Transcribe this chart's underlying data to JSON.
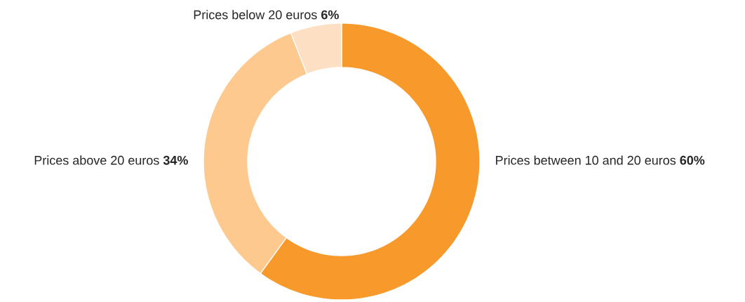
{
  "chart_data": {
    "type": "donut",
    "categories": [
      "Prices between 10 and 20 euros",
      "Prices above 20 euros",
      "Prices below 20 euros"
    ],
    "values": [
      60,
      34,
      6
    ],
    "colors": [
      "#f7992b",
      "#fdc98f",
      "#fde0c3"
    ],
    "value_labels": [
      "60%",
      "34%",
      "6%"
    ]
  }
}
